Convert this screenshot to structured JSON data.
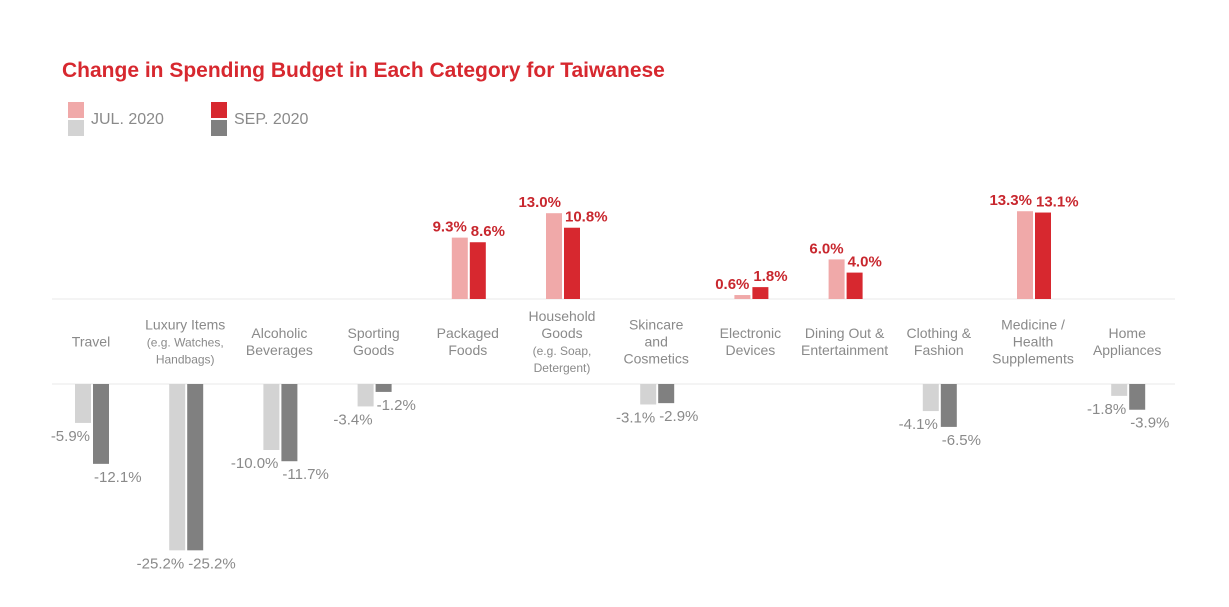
{
  "chart_data": {
    "type": "bar",
    "title": "Change in Spending Budget in Each Category for Taiwanese",
    "xlabel": "",
    "ylabel": "",
    "unit": "%",
    "ylim": [
      -25.2,
      13.3
    ],
    "grid": false,
    "legend_position": "top-left",
    "categories": [
      [
        "Travel"
      ],
      [
        "Luxury Items",
        "(e.g. Watches,",
        "Handbags)"
      ],
      [
        "Alcoholic",
        "Beverages"
      ],
      [
        "Sporting",
        "Goods"
      ],
      [
        "Packaged",
        "Foods"
      ],
      [
        "Household",
        "Goods",
        "(e.g. Soap,",
        "Detergent)"
      ],
      [
        "Skincare",
        "and",
        "Cosmetics"
      ],
      [
        "Electronic",
        "Devices"
      ],
      [
        "Dining Out &",
        "Entertainment"
      ],
      [
        "Clothing &",
        "Fashion"
      ],
      [
        "Medicine /",
        "Health",
        "Supplements"
      ],
      [
        "Home",
        "Appliances"
      ]
    ],
    "series": [
      {
        "name": "JUL. 2020",
        "values": [
          -5.9,
          -25.2,
          -10.0,
          -3.4,
          9.3,
          13.0,
          -3.1,
          0.6,
          6.0,
          -4.1,
          13.3,
          -1.8
        ],
        "labels": [
          "-5.9%",
          "-25.2%",
          "-10.0%",
          "-3.4%",
          "9.3%",
          "13.0%",
          "-3.1%",
          "0.6%",
          "6.0%",
          "-4.1%",
          "13.3%",
          "-1.8%"
        ]
      },
      {
        "name": "SEP. 2020",
        "values": [
          -12.1,
          -25.2,
          -11.7,
          -1.2,
          8.6,
          10.8,
          -2.9,
          1.8,
          4.0,
          -6.5,
          13.1,
          -3.9
        ],
        "labels": [
          "-12.1%",
          "-25.2%",
          "-11.7%",
          "-1.2%",
          "8.6%",
          "10.8%",
          "-2.9%",
          "1.8%",
          "4.0%",
          "-6.5%",
          "13.1%",
          "-3.9%"
        ]
      }
    ],
    "colors": {
      "title": "#d7282f",
      "jul_positive": "#f0a9a9",
      "jul_negative": "#d3d3d3",
      "sep_positive": "#d7282f",
      "sep_negative": "#808080",
      "positive_label": "#c8272e",
      "negative_label": "#8a8a8a",
      "category_label": "#8a8a8a",
      "axis_line": "#e8e8e8"
    }
  }
}
